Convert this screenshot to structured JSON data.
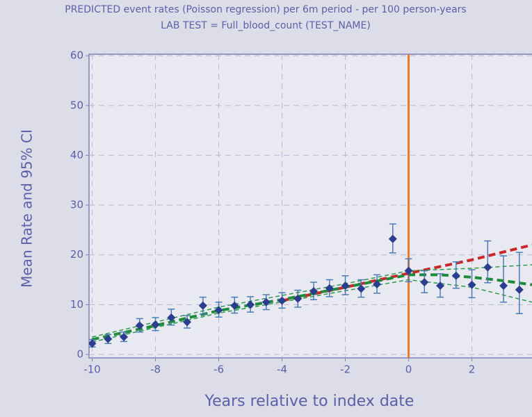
{
  "chart_data": {
    "type": "scatter",
    "title": "PREDICTED event rates (Poisson regression) per 6m period - per 100 person-years",
    "subtitle": "LAB TEST = Full_blood_count (TEST_NAME)",
    "x_label": "Years relative to index date",
    "y_label": "Mean Rate and 95% CI",
    "xlim": [
      -10.1,
      3.9
    ],
    "ylim": [
      -0.7,
      60.3
    ],
    "xticks": [
      -10,
      -8,
      -6,
      -4,
      -2,
      0,
      2
    ],
    "yticks": [
      0,
      10,
      20,
      30,
      40,
      50,
      60
    ],
    "grid": true,
    "reference_line_x": 0,
    "reference_line_color": "#e87830",
    "points": {
      "color": "#2b3d8f",
      "error_color": "#4a7bb5",
      "x": [
        -10,
        -9.5,
        -9,
        -8.5,
        -8,
        -7.5,
        -7,
        -6.5,
        -6,
        -5.5,
        -5,
        -4.5,
        -4,
        -3.5,
        -3,
        -2.5,
        -2,
        -1.5,
        -1,
        -0.5,
        0,
        0.5,
        1,
        1.5,
        2,
        2.5,
        3,
        3.5
      ],
      "values": [
        2.2,
        3.1,
        3.5,
        5.8,
        6.0,
        7.4,
        6.5,
        9.8,
        8.9,
        9.8,
        10.0,
        10.5,
        10.8,
        11.2,
        12.7,
        13.3,
        13.8,
        13.2,
        14.1,
        23.2,
        16.8,
        14.5,
        13.8,
        15.8,
        14.0,
        17.5,
        13.8,
        13.0
      ],
      "lower": [
        1.5,
        2.2,
        2.6,
        4.5,
        4.8,
        5.9,
        5.3,
        8.1,
        7.5,
        8.3,
        8.5,
        9.0,
        9.3,
        9.5,
        11.0,
        11.6,
        12.0,
        11.5,
        12.3,
        20.4,
        14.6,
        12.4,
        11.5,
        13.3,
        11.4,
        14.4,
        10.5,
        8.2
      ],
      "upper": [
        3.0,
        4.0,
        4.5,
        7.2,
        7.4,
        9.1,
        7.8,
        11.5,
        10.5,
        11.5,
        11.6,
        12.0,
        12.4,
        12.9,
        14.5,
        15.0,
        15.8,
        15.0,
        16.0,
        26.2,
        19.2,
        16.8,
        16.2,
        18.6,
        17.0,
        22.8,
        19.8,
        20.5
      ]
    },
    "series": [
      {
        "color": "#c8282a",
        "width": 4,
        "dash": "10 6",
        "x": [
          -4,
          -2,
          0,
          2,
          3.9
        ],
        "values": [
          10.8,
          13.5,
          16.3,
          19.0,
          22.0
        ]
      },
      {
        "color": "#1e8a3a",
        "width": 4,
        "dash": "10 6",
        "x": [
          -10,
          -8,
          -6,
          -4,
          -2,
          0,
          1,
          2,
          3,
          3.9
        ],
        "values": [
          3.0,
          5.8,
          8.8,
          11.0,
          13.5,
          16.0,
          16.0,
          15.5,
          14.8,
          14.0
        ]
      },
      {
        "color": "#2f9a4a",
        "width": 1.5,
        "dash": "6 4",
        "x": [
          -10,
          -6,
          -2,
          0,
          2,
          3.9
        ],
        "values": [
          3.5,
          9.5,
          14.2,
          16.8,
          17.3,
          18.0
        ]
      },
      {
        "color": "#2f9a4a",
        "width": 1.5,
        "dash": "6 4",
        "x": [
          -10,
          -6,
          -2,
          0,
          2,
          3.9
        ],
        "values": [
          2.5,
          8.3,
          12.8,
          15.0,
          13.5,
          10.5
        ]
      }
    ]
  }
}
